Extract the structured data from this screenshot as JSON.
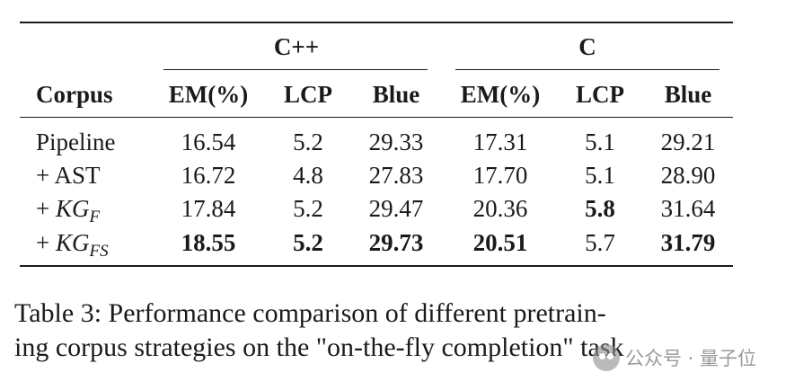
{
  "table": {
    "group_headers": [
      "C++",
      "C"
    ],
    "corpus_header": "Corpus",
    "metric_headers": [
      "EM(%)",
      "LCP",
      "Blue",
      "EM(%)",
      "LCP",
      "Blue"
    ],
    "rows": [
      {
        "label_prefix": "Pipeline",
        "label_math": "",
        "label_sub": "",
        "values": [
          "16.54",
          "5.2",
          "29.33",
          "17.31",
          "5.1",
          "29.21"
        ],
        "bold": [
          false,
          false,
          false,
          false,
          false,
          false
        ]
      },
      {
        "label_prefix": "+ AST",
        "label_math": "",
        "label_sub": "",
        "values": [
          "16.72",
          "4.8",
          "27.83",
          "17.70",
          "5.1",
          "28.90"
        ],
        "bold": [
          false,
          false,
          false,
          false,
          false,
          false
        ]
      },
      {
        "label_prefix": "+ ",
        "label_math": "KG",
        "label_sub": "F",
        "values": [
          "17.84",
          "5.2",
          "29.47",
          "20.36",
          "5.8",
          "31.64"
        ],
        "bold": [
          false,
          false,
          false,
          false,
          true,
          false
        ]
      },
      {
        "label_prefix": "+ ",
        "label_math": "KG",
        "label_sub": "FS",
        "values": [
          "18.55",
          "5.2",
          "29.73",
          "20.51",
          "5.7",
          "31.79"
        ],
        "bold": [
          true,
          true,
          true,
          true,
          false,
          true
        ]
      }
    ]
  },
  "caption": {
    "line1": "Table 3: Performance comparison of different pretrain-",
    "line2": "ing corpus strategies on the \"on-the-fly completion\" task"
  },
  "watermark": {
    "text": "公众号 · 量子位",
    "icon": "wechat-logo-icon"
  }
}
